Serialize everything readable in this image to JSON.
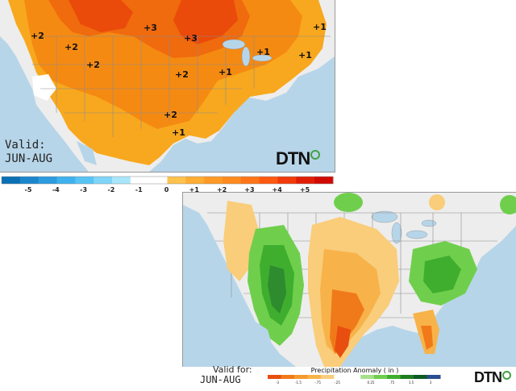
{
  "temp_map": {
    "valid_line1": "Valid:",
    "valid_line2": "JUN-AUG",
    "logo": "DTN",
    "anomaly_labels": [
      "+2",
      "+2",
      "+2",
      "+3",
      "+3",
      "+2",
      "+1",
      "+1",
      "+1",
      "+1",
      "+2",
      "+1"
    ],
    "legend_ticks": [
      "-5",
      "-4",
      "-3",
      "-2",
      "-1",
      "0",
      "+1",
      "+2",
      "+3",
      "+4",
      "+5"
    ],
    "legend_colors": [
      "#0a6fb5",
      "#1c86cc",
      "#2c9be0",
      "#3fb1ee",
      "#58c4f4",
      "#7fd6f8",
      "#a9e6fb",
      "#ffffff",
      "#ffffff",
      "#ffc24d",
      "#ffad33",
      "#ff9a25",
      "#ff8a1e",
      "#ff7518",
      "#ff5a10",
      "#f23a0a",
      "#e01e05",
      "#d00a02"
    ]
  },
  "precip_map": {
    "valid_line1": "Valid for:",
    "valid_line2": "JUN-AUG",
    "logo": "DTN",
    "legend_title": "Precipitation Anomaly ( in )",
    "legend_ticks": [
      "-3",
      "-1.5",
      "-.75",
      "-.25",
      "0.25",
      ".75",
      "1.5",
      "3"
    ],
    "legend_colors": [
      "#e84e0f",
      "#f07a1a",
      "#f59a2e",
      "#f7b34a",
      "#f9cd7a",
      "#ffffff",
      "#ffffff",
      "#a6e08a",
      "#6fcf4d",
      "#3fae2e",
      "#1f7d1f",
      "#0d5a25",
      "#2a4e8f"
    ]
  },
  "colors": {
    "land": "#ededed",
    "water": "#b7d5e9",
    "temp_plus1": "#f8a81e",
    "temp_plus2": "#f58a12",
    "temp_plus3": "#f06a0e",
    "temp_plus4": "#ea4a0a",
    "dry_light": "#f9cd7a",
    "dry_mid": "#f7b34a",
    "dry_strong": "#f07a1a",
    "dry_max": "#e84e0f",
    "wet_light": "#6fcf4d",
    "wet_mid": "#3fae2e",
    "wet_strong": "#2e8b2e",
    "brand_green": "#46a046"
  }
}
